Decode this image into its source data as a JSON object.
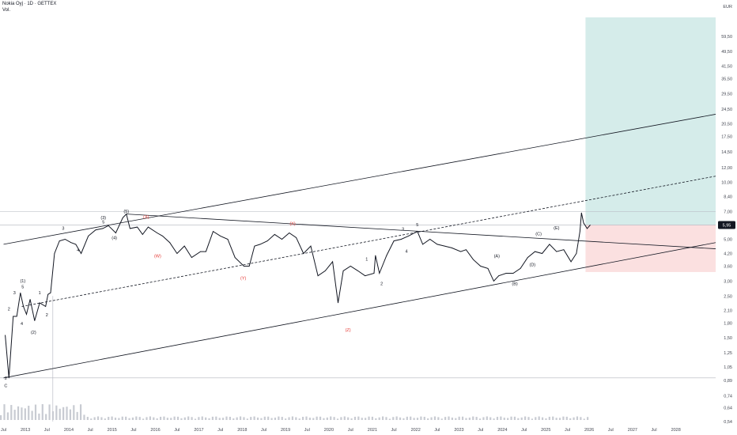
{
  "header": {
    "symbol_line": "Nokia Oyj · 1D · GETTEX",
    "indicator": "Vol."
  },
  "currency": "EUR",
  "last_price": "5,95",
  "colors": {
    "price": "#131722",
    "target_zone": "#d5ecea",
    "stop_zone": "#fbe0e0",
    "wave_red": "#e53935",
    "last_badge": "#131722"
  },
  "chart_data": {
    "type": "line",
    "title": "",
    "scale": "log",
    "y_range": [
      0.54,
      75
    ],
    "x_range": [
      "2012-07",
      "2028-12"
    ],
    "y_ticks": [
      "59,50",
      "49,50",
      "41,50",
      "35,50",
      "29,50",
      "24,50",
      "20,50",
      "17,50",
      "14,50",
      "12,00",
      "10,00",
      "8,40",
      "7,00",
      "5,00",
      "4,20",
      "3,60",
      "3,00",
      "2,50",
      "2,10",
      "1,80",
      "1,50",
      "1,25",
      "1,05",
      "0,89",
      "0,74",
      "0,64",
      "0,54"
    ],
    "x_ticks": [
      "Jul",
      "2013",
      "Jul",
      "2014",
      "Jul",
      "2015",
      "Jul",
      "2016",
      "Jul",
      "2017",
      "Jul",
      "2018",
      "Jul",
      "2019",
      "Jul",
      "2020",
      "Jul",
      "2021",
      "Jul",
      "2022",
      "Jul",
      "2023",
      "Jul",
      "2024",
      "Jul",
      "2025",
      "Jul",
      "2026",
      "Jul",
      "2027",
      "Jul",
      "2028"
    ],
    "price_points": [
      [
        "2012-07-15",
        1.55
      ],
      [
        "2012-08-15",
        0.92
      ],
      [
        "2012-09-20",
        1.95
      ],
      [
        "2012-10-20",
        1.95
      ],
      [
        "2012-11-20",
        2.6
      ],
      [
        "2012-12-15",
        2.2
      ],
      [
        "2013-01-10",
        2.0
      ],
      [
        "2013-02-10",
        2.4
      ],
      [
        "2013-03-20",
        1.85
      ],
      [
        "2013-05-01",
        2.3
      ],
      [
        "2013-06-20",
        2.2
      ],
      [
        "2013-07-10",
        2.55
      ],
      [
        "2013-08-01",
        2.6
      ],
      [
        "2013-09-03",
        4.2
      ],
      [
        "2013-10-15",
        4.9
      ],
      [
        "2013-12-01",
        5.0
      ],
      [
        "2014-01-20",
        4.8
      ],
      [
        "2014-03-01",
        4.7
      ],
      [
        "2014-04-15",
        4.2
      ],
      [
        "2014-06-15",
        5.2
      ],
      [
        "2014-08-15",
        5.6
      ],
      [
        "2014-10-15",
        5.7
      ],
      [
        "2014-12-01",
        5.9
      ],
      [
        "2015-02-01",
        5.4
      ],
      [
        "2015-04-01",
        6.5
      ],
      [
        "2015-05-01",
        6.8
      ],
      [
        "2015-06-01",
        5.7
      ],
      [
        "2015-08-01",
        5.8
      ],
      [
        "2015-09-15",
        5.3
      ],
      [
        "2015-11-01",
        5.8
      ],
      [
        "2016-01-15",
        5.4
      ],
      [
        "2016-03-01",
        5.2
      ],
      [
        "2016-05-01",
        4.8
      ],
      [
        "2016-07-01",
        4.2
      ],
      [
        "2016-09-01",
        4.6
      ],
      [
        "2016-11-01",
        4.0
      ],
      [
        "2017-01-15",
        4.3
      ],
      [
        "2017-03-01",
        4.3
      ],
      [
        "2017-05-01",
        5.5
      ],
      [
        "2017-07-01",
        5.2
      ],
      [
        "2017-09-01",
        5.0
      ],
      [
        "2017-11-01",
        4.0
      ],
      [
        "2018-01-15",
        3.6
      ],
      [
        "2018-03-01",
        3.6
      ],
      [
        "2018-04-15",
        4.6
      ],
      [
        "2018-06-01",
        4.7
      ],
      [
        "2018-08-01",
        4.9
      ],
      [
        "2018-10-01",
        5.3
      ],
      [
        "2018-12-01",
        5.0
      ],
      [
        "2019-02-01",
        5.4
      ],
      [
        "2019-04-01",
        5.1
      ],
      [
        "2019-06-01",
        4.2
      ],
      [
        "2019-08-01",
        4.6
      ],
      [
        "2019-10-01",
        3.2
      ],
      [
        "2019-12-01",
        3.4
      ],
      [
        "2020-02-01",
        3.8
      ],
      [
        "2020-03-18",
        2.3
      ],
      [
        "2020-05-01",
        3.4
      ],
      [
        "2020-07-01",
        3.6
      ],
      [
        "2020-09-01",
        3.4
      ],
      [
        "2020-11-01",
        3.2
      ],
      [
        "2021-01-15",
        3.3
      ],
      [
        "2021-01-27",
        4.1
      ],
      [
        "2021-03-01",
        3.3
      ],
      [
        "2021-05-01",
        4.1
      ],
      [
        "2021-07-01",
        4.9
      ],
      [
        "2021-09-01",
        5.0
      ],
      [
        "2021-11-01",
        5.2
      ],
      [
        "2022-01-15",
        5.5
      ],
      [
        "2022-03-01",
        4.7
      ],
      [
        "2022-05-01",
        5.0
      ],
      [
        "2022-07-01",
        4.7
      ],
      [
        "2022-09-01",
        4.6
      ],
      [
        "2022-11-01",
        4.5
      ],
      [
        "2023-01-15",
        4.3
      ],
      [
        "2023-03-01",
        4.4
      ],
      [
        "2023-05-01",
        3.9
      ],
      [
        "2023-07-01",
        3.6
      ],
      [
        "2023-09-01",
        3.5
      ],
      [
        "2023-10-20",
        3.0
      ],
      [
        "2023-12-01",
        3.2
      ],
      [
        "2024-02-01",
        3.3
      ],
      [
        "2024-04-01",
        3.3
      ],
      [
        "2024-06-01",
        3.5
      ],
      [
        "2024-08-01",
        4.0
      ],
      [
        "2024-10-01",
        4.3
      ],
      [
        "2024-12-01",
        4.2
      ],
      [
        "2025-02-01",
        4.7
      ],
      [
        "2025-04-01",
        4.3
      ],
      [
        "2025-06-01",
        4.4
      ],
      [
        "2025-08-01",
        3.8
      ],
      [
        "2025-09-15",
        4.2
      ],
      [
        "2025-10-15",
        5.5
      ],
      [
        "2025-10-28",
        6.9
      ],
      [
        "2025-11-15",
        6.1
      ],
      [
        "2025-12-15",
        5.7
      ],
      [
        "2026-01-10",
        5.95
      ]
    ],
    "wave_labels_black": [
      {
        "t": "(1)",
        "d": "2012-12-10",
        "v": 2.95
      },
      {
        "t": "5",
        "d": "2012-12-10",
        "v": 2.75
      },
      {
        "t": "2",
        "d": "2012-08-15",
        "v": 2.1
      },
      {
        "t": "3",
        "d": "2012-10-01",
        "v": 2.55
      },
      {
        "t": "4",
        "d": "2012-12-01",
        "v": 1.75
      },
      {
        "t": "(2)",
        "d": "2013-03-10",
        "v": 1.58
      },
      {
        "t": "1",
        "d": "2013-05-01",
        "v": 2.55
      },
      {
        "t": "2",
        "d": "2013-07-01",
        "v": 1.95
      },
      {
        "t": "2",
        "d": "2012-07-20",
        "v": 0.9
      },
      {
        "t": "C",
        "d": "2012-07-20",
        "v": 0.82
      },
      {
        "t": "3",
        "d": "2013-11-15",
        "v": 5.6
      },
      {
        "t": "4",
        "d": "2014-03-20",
        "v": 4.3
      },
      {
        "t": "(3)",
        "d": "2014-10-20",
        "v": 6.4
      },
      {
        "t": "5",
        "d": "2014-10-20",
        "v": 6.05
      },
      {
        "t": "(4)",
        "d": "2015-01-20",
        "v": 5.0
      },
      {
        "t": "(5)",
        "d": "2015-05-01",
        "v": 6.9
      },
      {
        "t": "1",
        "d": "2020-11-15",
        "v": 3.85
      },
      {
        "t": "2",
        "d": "2021-03-20",
        "v": 2.85
      },
      {
        "t": "3",
        "d": "2021-09-15",
        "v": 5.55
      },
      {
        "t": "4",
        "d": "2021-10-15",
        "v": 4.25
      },
      {
        "t": "5",
        "d": "2022-01-15",
        "v": 5.85
      },
      {
        "t": "(A)",
        "d": "2023-11-15",
        "v": 4.0
      },
      {
        "t": "(B)",
        "d": "2024-04-15",
        "v": 2.85
      },
      {
        "t": "(C)",
        "d": "2024-11-01",
        "v": 5.25
      },
      {
        "t": "(D)",
        "d": "2024-09-10",
        "v": 3.6
      },
      {
        "t": "(E)",
        "d": "2025-04-01",
        "v": 5.65
      }
    ],
    "wave_labels_red": [
      {
        "t": "(X)",
        "d": "2015-10-15",
        "v": 6.45
      },
      {
        "t": "(W)",
        "d": "2016-01-20",
        "v": 4.0
      },
      {
        "t": "(Y)",
        "d": "2018-01-10",
        "v": 3.05
      },
      {
        "t": "(X)",
        "d": "2019-03-01",
        "v": 5.95
      },
      {
        "t": "(Z)",
        "d": "2020-06-10",
        "v": 1.62
      }
    ]
  }
}
